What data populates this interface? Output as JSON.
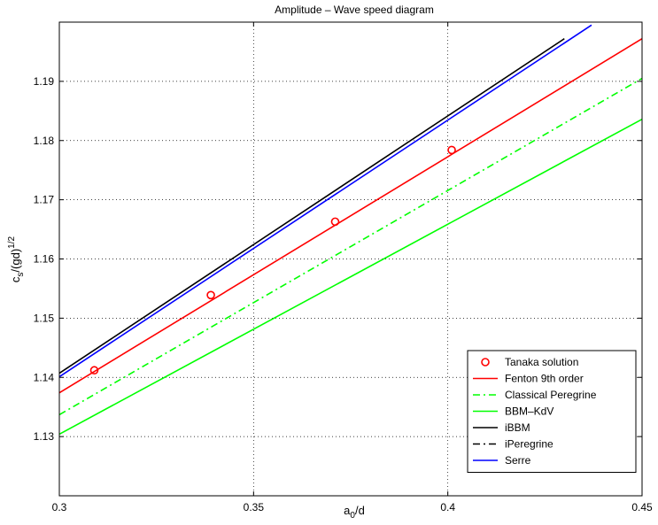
{
  "chart_data": {
    "type": "line",
    "title": "Amplitude – Wave speed diagram",
    "xlabel": {
      "base": "a",
      "sub": "0",
      "rest": "/d"
    },
    "ylabel": {
      "base": "c",
      "sub": "s",
      "rest": "/(gd)",
      "sup": "1/2"
    },
    "xlim": [
      0.3,
      0.45
    ],
    "ylim": [
      1.12,
      1.2
    ],
    "xticks": [
      0.3,
      0.35,
      0.4,
      0.45
    ],
    "xtick_labels": [
      "0.3",
      "0.35",
      "0.4",
      "0.45"
    ],
    "yticks": [
      1.13,
      1.14,
      1.15,
      1.16,
      1.17,
      1.18,
      1.19
    ],
    "ytick_labels": [
      "1.13",
      "1.14",
      "1.15",
      "1.16",
      "1.17",
      "1.18",
      "1.19"
    ],
    "grid": true,
    "legend_position": "bottom-right",
    "series": [
      {
        "name": "Tanaka solution",
        "kind": "markers",
        "color": "#ff0000",
        "x": [
          0.309,
          0.339,
          0.371,
          0.401
        ],
        "y": [
          1.1412,
          1.1539,
          1.1663,
          1.1784
        ]
      },
      {
        "name": "Fenton 9th order",
        "kind": "line",
        "dash": "solid",
        "color": "#ff0000",
        "x": [
          0.3,
          0.45
        ],
        "y": [
          1.1374,
          1.1972
        ]
      },
      {
        "name": "Classical Peregrine",
        "kind": "line",
        "dash": "dashdot",
        "color": "#00ff00",
        "x": [
          0.3,
          0.45
        ],
        "y": [
          1.1337,
          1.1905
        ]
      },
      {
        "name": "BBM–KdV",
        "kind": "line",
        "dash": "solid",
        "color": "#00ff00",
        "x": [
          0.3,
          0.45
        ],
        "y": [
          1.1304,
          1.1836
        ]
      },
      {
        "name": "iBBM",
        "kind": "line",
        "dash": "solid",
        "color": "#000000",
        "x": [
          0.3,
          0.43
        ],
        "y": [
          1.1407,
          1.1972
        ]
      },
      {
        "name": "iPeregrine",
        "kind": "line",
        "dash": "dashdot",
        "color": "#000000",
        "x": [],
        "y": []
      },
      {
        "name": "Serre",
        "kind": "line",
        "dash": "solid",
        "color": "#0000ff",
        "x": [
          0.3,
          0.437
        ],
        "y": [
          1.1401,
          1.1995
        ]
      }
    ]
  }
}
